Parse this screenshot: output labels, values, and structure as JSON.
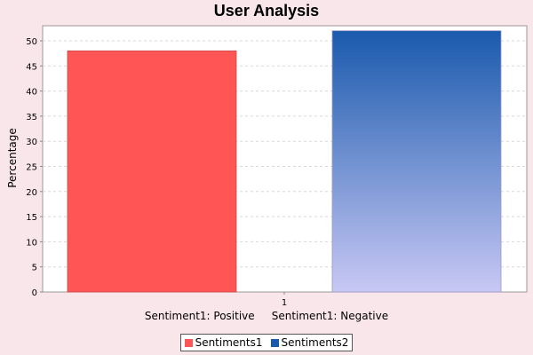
{
  "chart_data": {
    "type": "bar",
    "title": "User Analysis",
    "ylabel": "Percentage",
    "xlabel": "Sentiment1: Positive     Sentiment1: Negative",
    "categories": [
      "1"
    ],
    "series": [
      {
        "name": "Sentiments1",
        "values": [
          48
        ],
        "color": "#ff5555"
      },
      {
        "name": "Sentiments2",
        "values": [
          52
        ],
        "color": "#1a5aad"
      }
    ],
    "ylim": [
      0,
      53
    ],
    "yticks": [
      0,
      5,
      10,
      15,
      20,
      25,
      30,
      35,
      40,
      45,
      50
    ],
    "grid": true,
    "legend_position": "bottom"
  }
}
